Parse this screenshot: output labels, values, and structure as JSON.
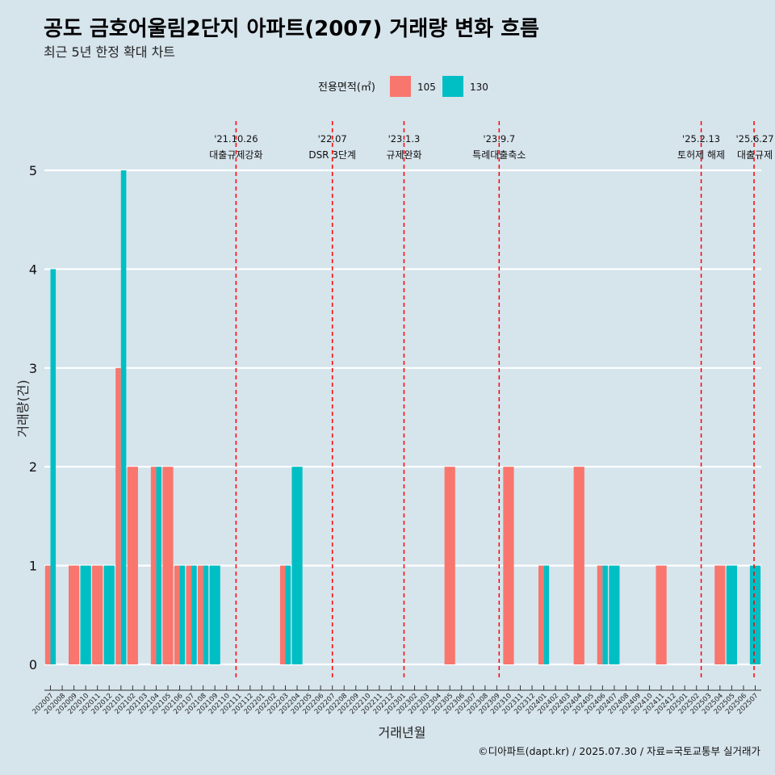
{
  "header": {
    "title": "공도 금호어울림2단지 아파트(2007) 거래량 변화 흐름",
    "subtitle": "최근 5년 한정 확대 차트"
  },
  "legend": {
    "title": "전용면적(㎡)",
    "items": [
      {
        "label": "105",
        "color": "#F8766D"
      },
      {
        "label": "130",
        "color": "#00BFC4"
      }
    ]
  },
  "caption": "©디아파트(dapt.kr) / 2025.07.30 / 자료=국토교통부 실거래가",
  "chart_data": {
    "type": "bar",
    "xlabel": "거래년월",
    "ylabel": "거래량(건)",
    "ylim": [
      0,
      5
    ],
    "yticks": [
      0,
      1,
      2,
      3,
      4,
      5
    ],
    "categories": [
      "202007",
      "202008",
      "202009",
      "202010",
      "202011",
      "202012",
      "202101",
      "202102",
      "202103",
      "202104",
      "202105",
      "202106",
      "202107",
      "202108",
      "202109",
      "202110",
      "202111",
      "202112",
      "202201",
      "202202",
      "202203",
      "202204",
      "202205",
      "202206",
      "202207",
      "202208",
      "202209",
      "202210",
      "202211",
      "202212",
      "202301",
      "202302",
      "202303",
      "202304",
      "202305",
      "202306",
      "202307",
      "202308",
      "202309",
      "202310",
      "202311",
      "202312",
      "202401",
      "202402",
      "202403",
      "202404",
      "202405",
      "202406",
      "202407",
      "202408",
      "202409",
      "202410",
      "202411",
      "202412",
      "202501",
      "202502",
      "202503",
      "202504",
      "202505",
      "202506",
      "202507"
    ],
    "series": [
      {
        "name": "105",
        "color": "#F8766D",
        "values": [
          1,
          0,
          1,
          0,
          1,
          0,
          3,
          2,
          0,
          2,
          2,
          1,
          1,
          1,
          0,
          0,
          0,
          0,
          0,
          0,
          1,
          0,
          0,
          0,
          0,
          0,
          0,
          0,
          0,
          0,
          0,
          0,
          0,
          0,
          2,
          0,
          0,
          0,
          0,
          2,
          0,
          0,
          1,
          0,
          0,
          2,
          0,
          1,
          0,
          0,
          0,
          0,
          1,
          0,
          0,
          0,
          0,
          1,
          0,
          0,
          0
        ]
      },
      {
        "name": "130",
        "color": "#00BFC4",
        "values": [
          4,
          0,
          0,
          1,
          0,
          1,
          5,
          0,
          0,
          2,
          0,
          1,
          1,
          1,
          1,
          0,
          0,
          0,
          0,
          0,
          1,
          2,
          0,
          0,
          0,
          0,
          0,
          0,
          0,
          0,
          0,
          0,
          0,
          0,
          0,
          0,
          0,
          0,
          0,
          0,
          0,
          0,
          1,
          0,
          0,
          0,
          0,
          1,
          1,
          0,
          0,
          0,
          0,
          0,
          0,
          0,
          0,
          0,
          1,
          0,
          1
        ]
      }
    ],
    "events": [
      {
        "date": "'21.10.26",
        "label": "대출규제강화",
        "index": 15.8
      },
      {
        "date": "'22.07",
        "label": "DSR 3단계",
        "index": 24.0
      },
      {
        "date": "'23.1.3",
        "label": "규제완화",
        "index": 30.1
      },
      {
        "date": "'23.9.7",
        "label": "특례대출축소",
        "index": 38.2
      },
      {
        "date": "'25.2.13",
        "label": "토허제 해제",
        "index": 55.4
      },
      {
        "date": "'25.6.27",
        "label": "대출규제",
        "index": 59.9
      }
    ]
  }
}
